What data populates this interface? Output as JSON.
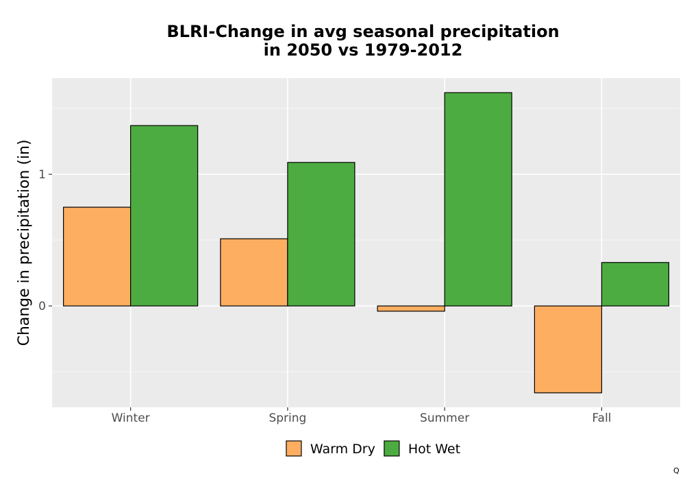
{
  "chart_data": {
    "type": "bar",
    "title_line1": "BLRI-Change in avg seasonal precipitation",
    "title_line2": "in 2050 vs 1979-2012",
    "xlabel": "",
    "ylabel": "Change in precipitation (in)",
    "categories": [
      "Winter",
      "Spring",
      "Summer",
      "Fall"
    ],
    "series": [
      {
        "name": "Warm Dry",
        "color": "#fdae61",
        "values": [
          0.75,
          0.51,
          -0.04,
          -0.66
        ]
      },
      {
        "name": "Hot Wet",
        "color": "#4dac41",
        "values": [
          1.37,
          1.09,
          1.62,
          0.33
        ]
      }
    ],
    "ylim": [
      -0.77,
      1.73
    ],
    "yticks": [
      0,
      1
    ],
    "ytick_labels": [
      "0",
      "1"
    ],
    "grid": true,
    "legend_position": "bottom",
    "corner_mark": "Q"
  }
}
